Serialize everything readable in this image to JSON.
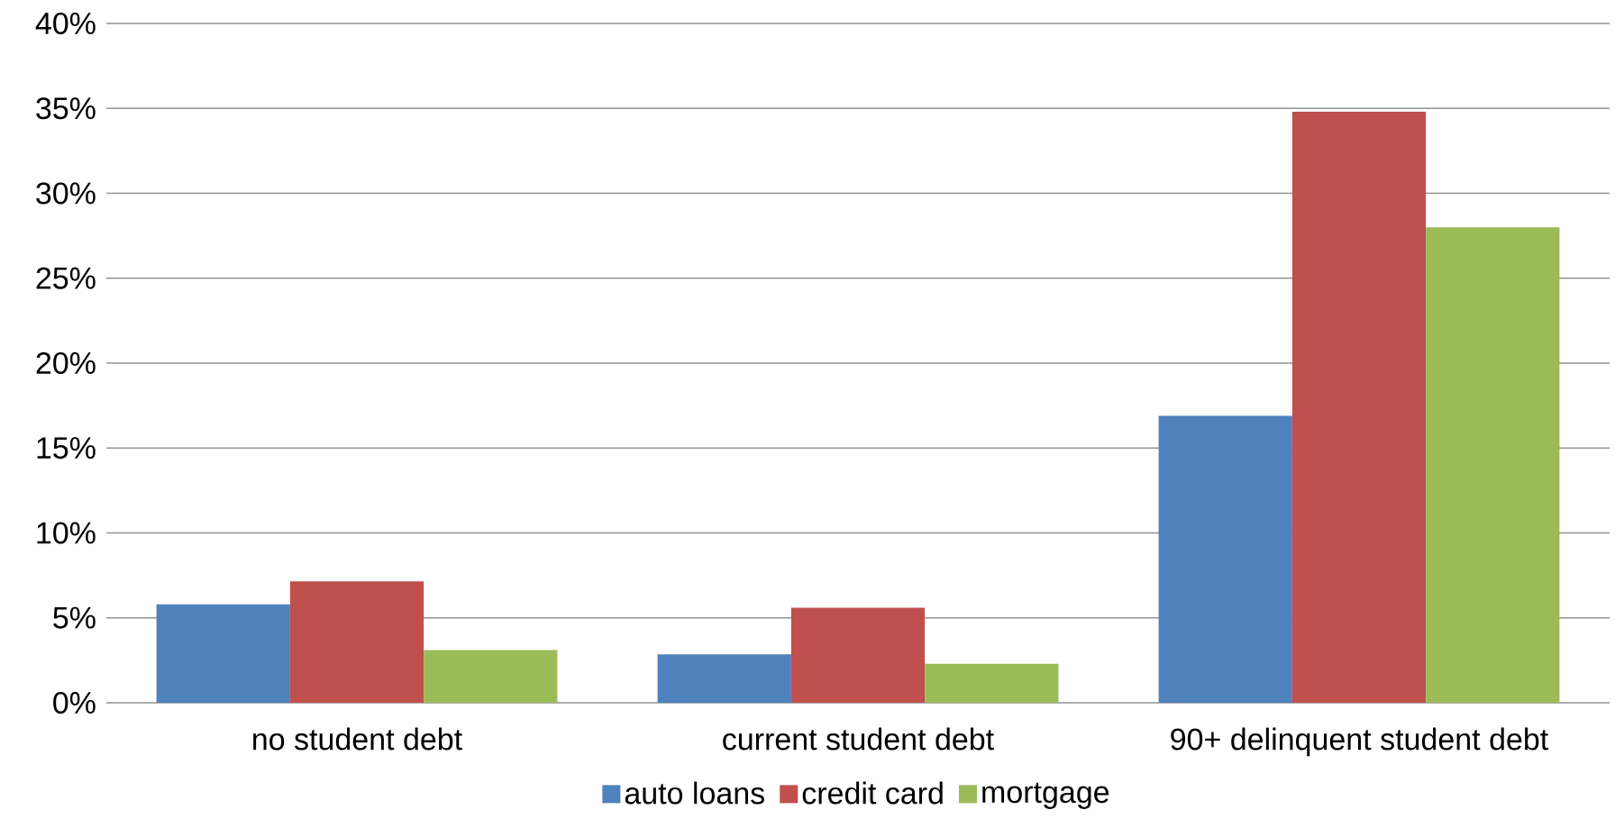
{
  "chart_data": {
    "type": "bar",
    "categories": [
      "no student debt",
      "current student debt",
      "90+ delinquent student debt"
    ],
    "series": [
      {
        "name": "auto loans",
        "color": "#4f81bd",
        "values": [
          5.8,
          2.85,
          16.9
        ]
      },
      {
        "name": "credit card",
        "color": "#c0504d",
        "values": [
          7.15,
          5.6,
          34.8
        ]
      },
      {
        "name": "mortgage",
        "color": "#9bbb59",
        "values": [
          3.1,
          2.3,
          28.0
        ]
      }
    ],
    "ylim": [
      0,
      40
    ],
    "yticks": [
      {
        "value": 0,
        "label": "0%"
      },
      {
        "value": 5,
        "label": "5%"
      },
      {
        "value": 10,
        "label": "10%"
      },
      {
        "value": 15,
        "label": "15%"
      },
      {
        "value": 20,
        "label": "20%"
      },
      {
        "value": 25,
        "label": "25%"
      },
      {
        "value": 30,
        "label": "30%"
      },
      {
        "value": 35,
        "label": "35%"
      },
      {
        "value": 40,
        "label": "40%"
      }
    ],
    "grid": "y",
    "legend": "bottom"
  }
}
